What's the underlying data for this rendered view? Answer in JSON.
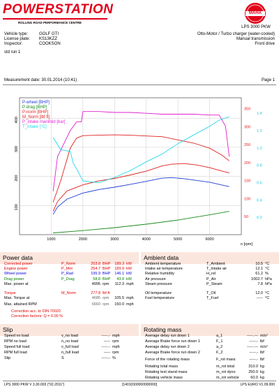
{
  "header": {
    "brand": "POWERSTATION",
    "brand_sub": "ROLLING ROAD PERFORMANCE CENTRE",
    "logo_text": "MAHA",
    "model": "LPS 3000 PKW",
    "colors": {
      "brand_red": "#e2001a",
      "section_bar": "#fbe6de"
    }
  },
  "vehicle": {
    "type_label": "Vehicle type:",
    "type": "GOLF GTI",
    "plate_label": "License plate:",
    "plate": "KS13KZZ",
    "inspector_label": "Inspector:",
    "inspector": "COOKSON",
    "engine": "Otto-Motor / Turbo charger (water-cooled)",
    "transmission": "Manual transmission",
    "drive": "Front drive",
    "run": "std run 1"
  },
  "measurement": {
    "date_label": "Measurement date: 30.01.2014 (10:41)",
    "page": "Page 1"
  },
  "chart_data": {
    "type": "line",
    "x_unit": "n [rpm]",
    "x_ticks": [
      "1000",
      "2000",
      "3000",
      "4000",
      "5000",
      "6000"
    ],
    "xlim": [
      0,
      7000
    ],
    "y_left_ticks": [
      "100",
      "200",
      "300",
      "400"
    ],
    "y_right_red_ticks": [
      "50",
      "100",
      "150",
      "200",
      "250",
      "300",
      "350"
    ],
    "y_right_cyan_ticks": [
      "0.2",
      "0.4",
      "0.6",
      "0.8",
      "1.0",
      "1.2",
      "1.4"
    ],
    "legend": [
      {
        "label": "P-wheel [BHP]",
        "color": "#1e3cd8"
      },
      {
        "label": "P-drag [BHP]",
        "color": "#1a8a1a"
      },
      {
        "label": "P-norm [BHP]",
        "color": "#e02020"
      },
      {
        "label": "M_Norm [lbf ft]",
        "color": "#e02020"
      },
      {
        "label": "P_intake manifold [bar]",
        "color": "#e020d0"
      },
      {
        "label": "T_intake [°C]",
        "color": "#20d8e8"
      }
    ],
    "series": [
      {
        "name": "P-wheel",
        "color": "#1e3cd8",
        "x": [
          1060,
          1200,
          1500,
          2000,
          2500,
          3000,
          3500,
          4000,
          4500,
          4800,
          5200,
          5600,
          6000,
          6400,
          6620
        ],
        "y": [
          70,
          95,
          122,
          143,
          155,
          163,
          173,
          183,
          194,
          196,
          192,
          186,
          180,
          170,
          165
        ]
      },
      {
        "name": "P-drag",
        "color": "#1a8a1a",
        "x": [
          1060,
          2000,
          3000,
          4000,
          5000,
          6000,
          6620
        ],
        "y": [
          6,
          14,
          24,
          36,
          50,
          68,
          80
        ]
      },
      {
        "name": "P-norm",
        "color": "#e02020",
        "x": [
          1060,
          1200,
          1500,
          2000,
          2500,
          3000,
          3500,
          4000,
          4500,
          4800,
          5200,
          5600,
          6000,
          6400,
          6620
        ],
        "y": [
          80,
          114,
          150,
          171,
          185,
          193,
          205,
          218,
          236,
          242,
          244,
          239,
          230,
          218,
          212
        ]
      },
      {
        "name": "M-norm",
        "color": "#e02020",
        "x": [
          1060,
          1300,
          1600,
          1800,
          2000,
          2500,
          3000,
          3500,
          4000,
          4500,
          5000,
          5500,
          6000,
          6400,
          6620
        ],
        "y": [
          90,
          150,
          240,
          268,
          275,
          276,
          277,
          276,
          274,
          272,
          263,
          254,
          240,
          220,
          205
        ]
      },
      {
        "name": "P-intake",
        "color": "#e020d0",
        "x": [
          1060,
          1200,
          1400,
          1600,
          1800,
          1950,
          2000,
          2500,
          3000,
          3500,
          4000,
          4500,
          5000,
          5500,
          6000,
          6300,
          6500,
          6620
        ],
        "y": [
          0.5,
          0.9,
          1.05,
          1.2,
          1.3,
          1.3,
          1.42,
          1.42,
          1.41,
          1.41,
          1.4,
          1.39,
          1.39,
          1.39,
          1.38,
          1.38,
          1.25,
          0.9
        ]
      },
      {
        "name": "T-intake",
        "color": "#20d8e8",
        "x": [
          1060,
          1300,
          1600,
          1700,
          1800,
          2000,
          2500,
          3000,
          3500,
          4000,
          4500,
          5000,
          5500,
          6000,
          6300,
          6620
        ],
        "y": [
          1.12,
          0.98,
          0.96,
          0.82,
          0.76,
          0.62,
          0.6,
          0.66,
          0.74,
          0.84,
          0.93,
          1.05,
          1.15,
          1.25,
          1.32,
          1.36
        ]
      }
    ]
  },
  "power": {
    "title": "Power data",
    "rows": [
      {
        "label": "Corrected power",
        "sym": "P_Norm",
        "v1": "253.8",
        "u1": "BHP",
        "v2": "189.3",
        "u2": "kW",
        "color": "red"
      },
      {
        "label": "Engine power",
        "sym": "P_Mot",
        "v1": "254.7",
        "u1": "BHP",
        "v2": "189.9",
        "u2": "kW",
        "color": "red"
      },
      {
        "label": "Wheel power",
        "sym": "P_Rad",
        "v1": "195.9",
        "u1": "BHP",
        "v2": "146.1",
        "u2": "kW",
        "color": "blue"
      },
      {
        "label": "Drag power",
        "sym": "P_Drag",
        "v1": "58.8",
        "u1": "BHP",
        "v2": "43.9",
        "u2": "kW",
        "color": "green"
      },
      {
        "label": "Max. power at",
        "sym": "",
        "v1": "4995",
        "u1": "rpm",
        "v2": "112.3",
        "u2": "mph",
        "color": "black"
      }
    ],
    "torque_label": "Torque",
    "torque_sym": "M_Norm",
    "torque_value": "277.8",
    "torque_unit": "lbf.ft",
    "max_torque_label": "Max. Torque at",
    "max_torque_rpm": "4685",
    "max_torque_speed": "105.5",
    "max_rpm_label": "Max. attained RPM",
    "max_rpm": "6660",
    "max_rpm_speed": "150.0",
    "rpm_unit": "rpm",
    "mph_unit": "mph",
    "correction_note": "Correction acc. to DIN 70020",
    "correction_factors": "Correction factors: Q = 0.00 %"
  },
  "ambient": {
    "title": "Ambient data",
    "rows": [
      {
        "label": "Ambient temperature",
        "sym": "T_Ambient",
        "value": "10.5",
        "unit": "°C"
      },
      {
        "label": "Intake air temperature",
        "sym": "T_Intake air",
        "value": "12.1",
        "unit": "°C"
      },
      {
        "label": "Relative humidity",
        "sym": "H_rel",
        "value": "61.2",
        "unit": "%"
      },
      {
        "label": "Air pressure",
        "sym": "P_Air",
        "value": "1002.7",
        "unit": "hPa"
      },
      {
        "label": "Steam pressure",
        "sym": "P_Steam",
        "value": "7.8",
        "unit": "hPa"
      }
    ],
    "rows2": [
      {
        "label": "Oil temperature",
        "sym": "T_Oil",
        "value": "12.0",
        "unit": "°C"
      },
      {
        "label": "Fuel temperature",
        "sym": "T_Fuel",
        "value": "-----",
        "unit": "°C"
      }
    ]
  },
  "slip": {
    "title": "Slip",
    "rows": [
      {
        "label": "Speed no load",
        "sym": "v_no load",
        "value": "-----.-",
        "unit": "mph"
      },
      {
        "label": "RPM no load",
        "sym": "n_no load",
        "value": "-----",
        "unit": "rpm"
      },
      {
        "label": "Speed full load",
        "sym": "v_full load",
        "value": "-----.-",
        "unit": "mph"
      },
      {
        "label": "RPM full load",
        "sym": "n_full load",
        "value": "-----",
        "unit": "rpm"
      },
      {
        "label": "Slip",
        "sym": "S",
        "value": "-----.-",
        "unit": "%"
      }
    ]
  },
  "rotating": {
    "title": "Rotating mass",
    "rows": [
      {
        "label": "Average delay run down 1",
        "sym": "a_1",
        "value": "-----.---",
        "unit": "m/s²"
      },
      {
        "label": "Average Brake force run down 1",
        "sym": "F_1",
        "value": "-----.-",
        "unit": "lbf"
      },
      {
        "label": "Average delay run down 2",
        "sym": "a_2",
        "value": "-----.---",
        "unit": "m/s²"
      },
      {
        "label": "Average Brake force run down 2",
        "sym": "F_2",
        "value": "-----.-",
        "unit": "lbf"
      },
      {
        "label": "Force of the rotating mass",
        "sym": "F_rot mass",
        "value": "-----.-",
        "unit": "lbf"
      },
      {
        "label": "Rotating total mass",
        "sym": "m_rot total",
        "value": "310.0",
        "unit": "kg"
      },
      {
        "label": "Rotating test stand mass",
        "sym": "m_rot dyno",
        "value": "250.0",
        "unit": "kg"
      },
      {
        "label": "Rotating vehicle mass",
        "sym": "m_rot vehicle",
        "value": "60.0",
        "unit": "kg"
      }
    ]
  },
  "footer": {
    "left": "LPS 3000 PKW V 3.30.003 (\"02.2011\")",
    "center": "[14010300000000000]",
    "right": "LPS EURO V1.09.000"
  }
}
